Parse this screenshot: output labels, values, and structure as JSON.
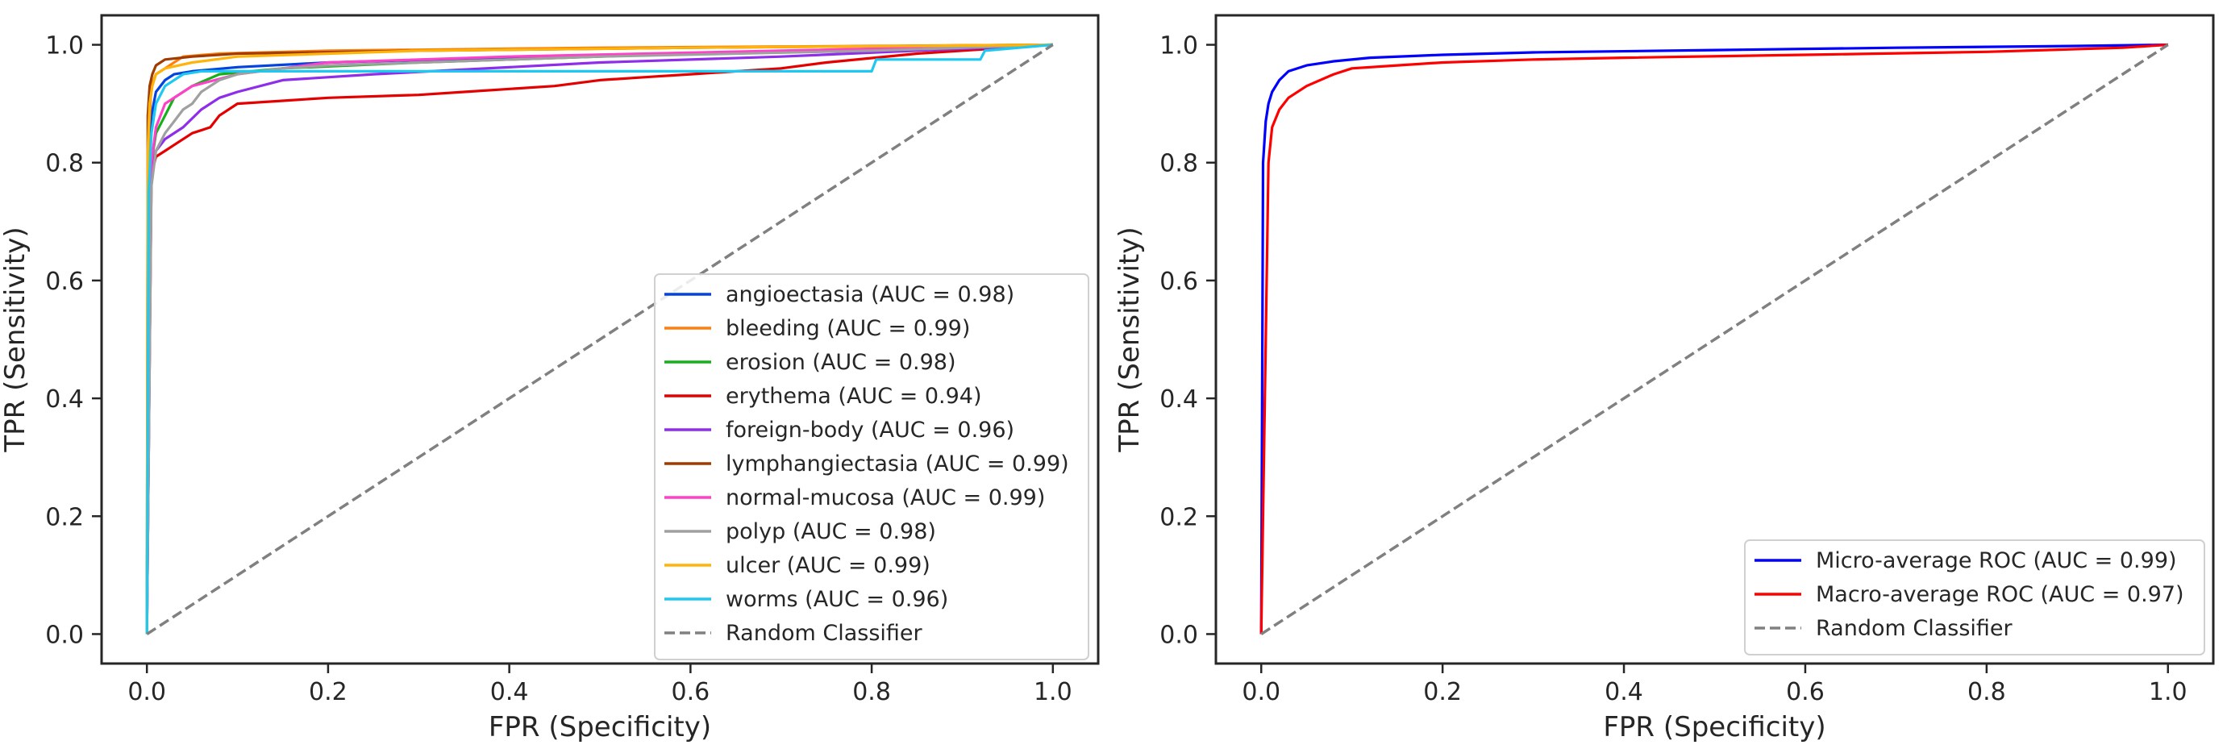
{
  "chart_data": [
    {
      "type": "line",
      "xlabel": "FPR (Specificity)",
      "ylabel": "TPR (Sensitivity)",
      "xlim": [
        -0.05,
        1.05
      ],
      "ylim": [
        -0.05,
        1.05
      ],
      "xticks": [
        0.0,
        0.2,
        0.4,
        0.6,
        0.8,
        1.0
      ],
      "yticks": [
        0.0,
        0.2,
        0.4,
        0.6,
        0.8,
        1.0
      ],
      "grid": false,
      "legend_position": "lower right",
      "series": [
        {
          "name": "angioectasia",
          "label": "angioectasia (AUC = 0.98)",
          "auc": 0.98,
          "color": "#0343df",
          "x": [
            0,
            0.002,
            0.005,
            0.01,
            0.02,
            0.03,
            0.05,
            0.1,
            0.2,
            0.4,
            0.6,
            0.8,
            1.0
          ],
          "y": [
            0,
            0.8,
            0.88,
            0.92,
            0.94,
            0.95,
            0.955,
            0.962,
            0.97,
            0.978,
            0.985,
            0.99,
            1.0
          ]
        },
        {
          "name": "bleeding",
          "label": "bleeding (AUC = 0.99)",
          "auc": 0.99,
          "color": "#ff7f0e",
          "x": [
            0,
            0.002,
            0.005,
            0.01,
            0.02,
            0.04,
            0.08,
            0.2,
            0.5,
            0.8,
            1.0
          ],
          "y": [
            0,
            0.85,
            0.93,
            0.95,
            0.96,
            0.98,
            0.985,
            0.99,
            0.995,
            0.998,
            1.0
          ]
        },
        {
          "name": "erosion",
          "label": "erosion (AUC = 0.98)",
          "auc": 0.98,
          "color": "#15b01a",
          "x": [
            0,
            0.002,
            0.005,
            0.01,
            0.02,
            0.03,
            0.05,
            0.08,
            0.15,
            0.3,
            0.6,
            0.9,
            1.0
          ],
          "y": [
            0,
            0.72,
            0.8,
            0.85,
            0.88,
            0.91,
            0.93,
            0.95,
            0.96,
            0.97,
            0.985,
            0.995,
            1.0
          ]
        },
        {
          "name": "erythema",
          "label": "erythema (AUC = 0.94)",
          "auc": 0.94,
          "color": "#e50000",
          "x": [
            0,
            0.005,
            0.01,
            0.02,
            0.03,
            0.05,
            0.07,
            0.08,
            0.1,
            0.15,
            0.2,
            0.3,
            0.35,
            0.45,
            0.5,
            0.55,
            0.6,
            0.7,
            0.75,
            0.85,
            1.0
          ],
          "y": [
            0,
            0.78,
            0.81,
            0.82,
            0.83,
            0.85,
            0.86,
            0.88,
            0.9,
            0.905,
            0.91,
            0.915,
            0.92,
            0.93,
            0.94,
            0.945,
            0.95,
            0.96,
            0.97,
            0.985,
            1.0
          ]
        },
        {
          "name": "foreign-body",
          "label": "foreign-body (AUC = 0.96)",
          "auc": 0.96,
          "color": "#8e2eea",
          "x": [
            0,
            0.005,
            0.01,
            0.02,
            0.04,
            0.06,
            0.08,
            0.1,
            0.15,
            0.25,
            0.5,
            0.7,
            1.0
          ],
          "y": [
            0,
            0.78,
            0.82,
            0.84,
            0.86,
            0.89,
            0.91,
            0.92,
            0.94,
            0.95,
            0.97,
            0.98,
            1.0
          ]
        },
        {
          "name": "lymphangiectasia",
          "label": "lymphangiectasia (AUC = 0.99)",
          "auc": 0.99,
          "color": "#a03c00",
          "x": [
            0,
            0.001,
            0.003,
            0.006,
            0.01,
            0.02,
            0.05,
            0.1,
            0.3,
            0.6,
            1.0
          ],
          "y": [
            0,
            0.88,
            0.93,
            0.95,
            0.965,
            0.975,
            0.98,
            0.985,
            0.99,
            0.995,
            1.0
          ]
        },
        {
          "name": "normal-mucosa",
          "label": "normal-mucosa (AUC = 0.99)",
          "auc": 0.99,
          "color": "#ff40c8",
          "x": [
            0,
            0.002,
            0.005,
            0.01,
            0.02,
            0.05,
            0.1,
            0.2,
            0.4,
            0.7,
            1.0
          ],
          "y": [
            0,
            0.7,
            0.8,
            0.86,
            0.9,
            0.93,
            0.95,
            0.97,
            0.98,
            0.99,
            1.0
          ]
        },
        {
          "name": "polyp",
          "label": "polyp (AUC = 0.98)",
          "auc": 0.98,
          "color": "#a0a0a0",
          "x": [
            0,
            0.005,
            0.01,
            0.02,
            0.03,
            0.04,
            0.05,
            0.06,
            0.08,
            0.1,
            0.15,
            0.2,
            0.3,
            0.5,
            0.8,
            1.0
          ],
          "y": [
            0,
            0.76,
            0.82,
            0.85,
            0.87,
            0.89,
            0.9,
            0.92,
            0.94,
            0.95,
            0.96,
            0.965,
            0.97,
            0.98,
            0.99,
            1.0
          ]
        },
        {
          "name": "ulcer",
          "label": "ulcer (AUC = 0.99)",
          "auc": 0.99,
          "color": "#ffb40a",
          "x": [
            0,
            0.001,
            0.003,
            0.006,
            0.01,
            0.02,
            0.05,
            0.1,
            0.3,
            0.6,
            1.0
          ],
          "y": [
            0,
            0.82,
            0.9,
            0.93,
            0.95,
            0.96,
            0.97,
            0.98,
            0.99,
            0.995,
            1.0
          ]
        },
        {
          "name": "worms",
          "label": "worms (AUC = 0.96)",
          "auc": 0.96,
          "color": "#1ec8f0",
          "x": [
            0,
            0.002,
            0.005,
            0.01,
            0.02,
            0.04,
            0.06,
            0.08,
            0.1,
            0.12,
            0.3,
            0.6,
            0.8,
            0.805,
            0.92,
            0.925,
            1.0
          ],
          "y": [
            0,
            0.75,
            0.85,
            0.9,
            0.93,
            0.95,
            0.955,
            0.955,
            0.955,
            0.955,
            0.955,
            0.955,
            0.955,
            0.975,
            0.975,
            0.99,
            1.0
          ]
        },
        {
          "name": "Random Classifier",
          "label": "Random Classifier",
          "color": "#808080",
          "dashed": true,
          "x": [
            0,
            1
          ],
          "y": [
            0,
            1
          ]
        }
      ]
    },
    {
      "type": "line",
      "xlabel": "FPR (Specificity)",
      "ylabel": "TPR (Sensitivity)",
      "xlim": [
        -0.05,
        1.05
      ],
      "ylim": [
        -0.05,
        1.05
      ],
      "xticks": [
        0.0,
        0.2,
        0.4,
        0.6,
        0.8,
        1.0
      ],
      "yticks": [
        0.0,
        0.2,
        0.4,
        0.6,
        0.8,
        1.0
      ],
      "grid": false,
      "legend_position": "lower right",
      "series": [
        {
          "name": "Micro-average ROC",
          "label": "Micro-average ROC (AUC = 0.99)",
          "auc": 0.99,
          "color": "#0000ff",
          "x": [
            0,
            0.002,
            0.005,
            0.008,
            0.012,
            0.02,
            0.03,
            0.05,
            0.08,
            0.12,
            0.2,
            0.3,
            0.5,
            0.7,
            0.9,
            1.0
          ],
          "y": [
            0,
            0.8,
            0.87,
            0.9,
            0.92,
            0.94,
            0.955,
            0.965,
            0.972,
            0.978,
            0.983,
            0.987,
            0.991,
            0.995,
            0.998,
            1.0
          ]
        },
        {
          "name": "Macro-average ROC",
          "label": "Macro-average ROC (AUC = 0.97)",
          "auc": 0.97,
          "color": "#ff0000",
          "x": [
            0,
            0.008,
            0.012,
            0.02,
            0.03,
            0.05,
            0.08,
            0.1,
            0.15,
            0.2,
            0.3,
            0.4,
            0.6,
            0.8,
            0.95,
            1.0
          ],
          "y": [
            0,
            0.8,
            0.86,
            0.89,
            0.91,
            0.93,
            0.95,
            0.96,
            0.965,
            0.97,
            0.975,
            0.978,
            0.983,
            0.988,
            0.995,
            1.0
          ]
        },
        {
          "name": "Random Classifier",
          "label": "Random Classifier",
          "color": "#808080",
          "dashed": true,
          "x": [
            0,
            1
          ],
          "y": [
            0,
            1
          ]
        }
      ]
    }
  ]
}
